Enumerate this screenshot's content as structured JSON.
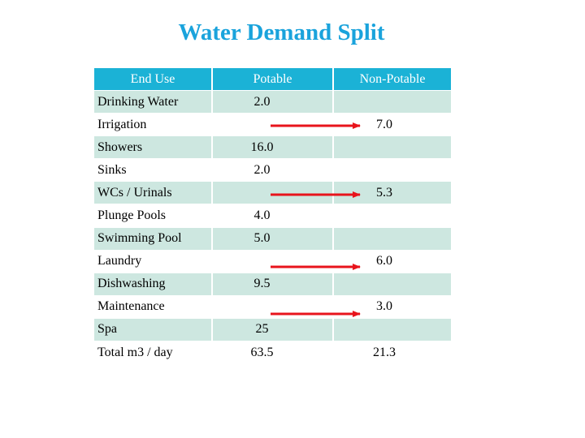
{
  "title": "Water Demand Split",
  "headers": {
    "end_use": "End Use",
    "potable": "Potable",
    "non_potable": "Non-Potable"
  },
  "rows": [
    {
      "end_use": "Drinking Water",
      "potable": "2.0",
      "non_potable": ""
    },
    {
      "end_use": "Irrigation",
      "potable": "",
      "non_potable": "7.0"
    },
    {
      "end_use": "Showers",
      "potable": "16.0",
      "non_potable": ""
    },
    {
      "end_use": "Sinks",
      "potable": "2.0",
      "non_potable": ""
    },
    {
      "end_use": "WCs / Urinals",
      "potable": "",
      "non_potable": "5.3"
    },
    {
      "end_use": "Plunge Pools",
      "potable": "4.0",
      "non_potable": ""
    },
    {
      "end_use": "Swimming Pool",
      "potable": "5.0",
      "non_potable": ""
    },
    {
      "end_use": "Laundry",
      "potable": "",
      "non_potable": "6.0"
    },
    {
      "end_use": "Dishwashing",
      "potable": "9.5",
      "non_potable": ""
    },
    {
      "end_use": "Maintenance",
      "potable": "",
      "non_potable": "3.0"
    },
    {
      "end_use": "Spa",
      "potable": "25",
      "non_potable": ""
    },
    {
      "end_use": "Total m3 / day",
      "potable": "63.5",
      "non_potable": "21.3"
    }
  ],
  "colors": {
    "title": "#1aa3dc",
    "header_bg": "#1bb2d6",
    "row_shade": "#cde7e0",
    "arrow": "#e8141c"
  }
}
